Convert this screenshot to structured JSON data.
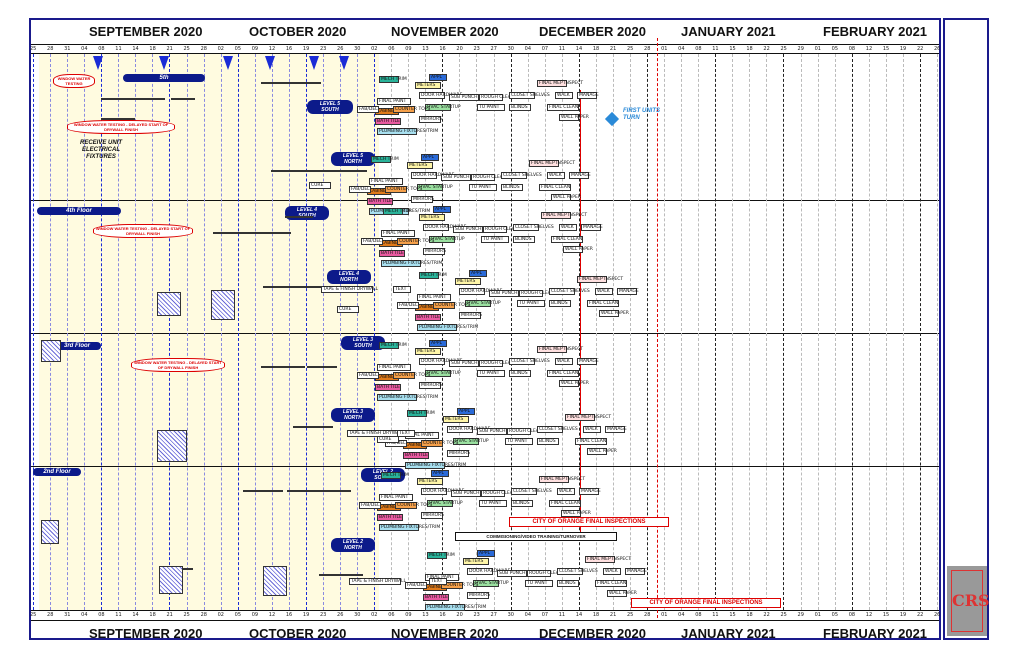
{
  "months": [
    "SEPTEMBER 2020",
    "OCTOBER 2020",
    "NOVEMBER 2020",
    "DECEMBER 2020",
    "JANUARY 2021",
    "FEBRUARY 2021"
  ],
  "day_ticks": [
    "25",
    "28",
    "31",
    "04",
    "08",
    "11",
    "14",
    "18",
    "21",
    "25",
    "28",
    "02",
    "05",
    "09",
    "12",
    "16",
    "19",
    "23",
    "26",
    "30",
    "02",
    "06",
    "09",
    "13",
    "16",
    "20",
    "23",
    "27",
    "30",
    "04",
    "07",
    "11",
    "14",
    "18",
    "21",
    "25",
    "28",
    "01",
    "04",
    "08",
    "11",
    "15",
    "18",
    "22",
    "25",
    "29",
    "01",
    "05",
    "08",
    "12",
    "15",
    "19",
    "22",
    "26"
  ],
  "floors": [
    {
      "label": "5th"
    },
    {
      "label": "4th Floor"
    },
    {
      "label": "3rd Floor"
    },
    {
      "label": "2nd Floor"
    }
  ],
  "levels": [
    {
      "label": "LEVEL 5 SOUTH"
    },
    {
      "label": "LEVEL 5 NORTH"
    },
    {
      "label": "LEVEL 4 SOUTH"
    },
    {
      "label": "LEVEL 4 NORTH"
    },
    {
      "label": "LEVEL 3 SOUTH"
    },
    {
      "label": "LEVEL 3 NORTH"
    },
    {
      "label": "LEVEL 2 SOUTH"
    },
    {
      "label": "LEVEL 2 NORTH"
    }
  ],
  "notes": {
    "receive": "RECEIVE UNIT ELECTRICAL FIXTURES",
    "first_units": "FIRST UNITS TURN",
    "window_water_1": "WINDOW WATER TESTING",
    "window_water_2": "WINDOW WATER TESTING - DELAYED START OF DRYWALL FINISH",
    "window_water_3": "WINDOW WATER TESTING - DELAYED START OF DRYWALL FINISH",
    "window_water_4": "WINDOW WATER TESTING - DELAYED START OF DRYWALL FINISH",
    "city_1": "CITY OF ORANGE FINAL INSPECTIONS",
    "city_2": "CITY OF ORANGE FINAL INSPECTIONS",
    "commissioning": "COMMISIONING/VIDEO TRAINING/TURNOVER"
  },
  "task_labels": {
    "meters": "METERS",
    "appl": "APPL",
    "door_hardware": "DOOR HARDWARE",
    "sub_punch": "SUB PUNCH",
    "rough_clean": "ROUGH CLEAN",
    "closet_shelves": "CLOSET SHELVES",
    "final_mep": "FINAL MEP INSPECT",
    "walk": "WALK",
    "manage": "MANAGE",
    "punch": "PUNCH",
    "correct": "CORRECT",
    "final_clean": "FINAL CLEAN",
    "wall_paper": "WALL PAPER",
    "blinds": "BLINDS",
    "tu_paint": "TU PAINT",
    "hvac_startup": "HVAC STARTUP",
    "mirrors": "MIRRORS",
    "final_paint": "FINAL PAINT",
    "mech_trim": "MECH TRIM",
    "cabinets": "CABINETS",
    "bath_tile": "BATH TILE",
    "counter_tops": "COUNTER TOPS",
    "plumbing_fixtures": "PLUMBING FIXTURES/TRIM",
    "cure": "CURE",
    "fab_del": "FAB/DEL",
    "tape_finish": "TAPE & FINISH DRYWALL",
    "text": "TEXT"
  },
  "logo": "CRS",
  "colors": {
    "frame": "#1a1a8c",
    "band": "#fffbe0",
    "accent": "#1a2bd6",
    "red": "#dd0000",
    "teal": "#2ab39a",
    "orange": "#e07a1a",
    "pink": "#e85aa0"
  }
}
